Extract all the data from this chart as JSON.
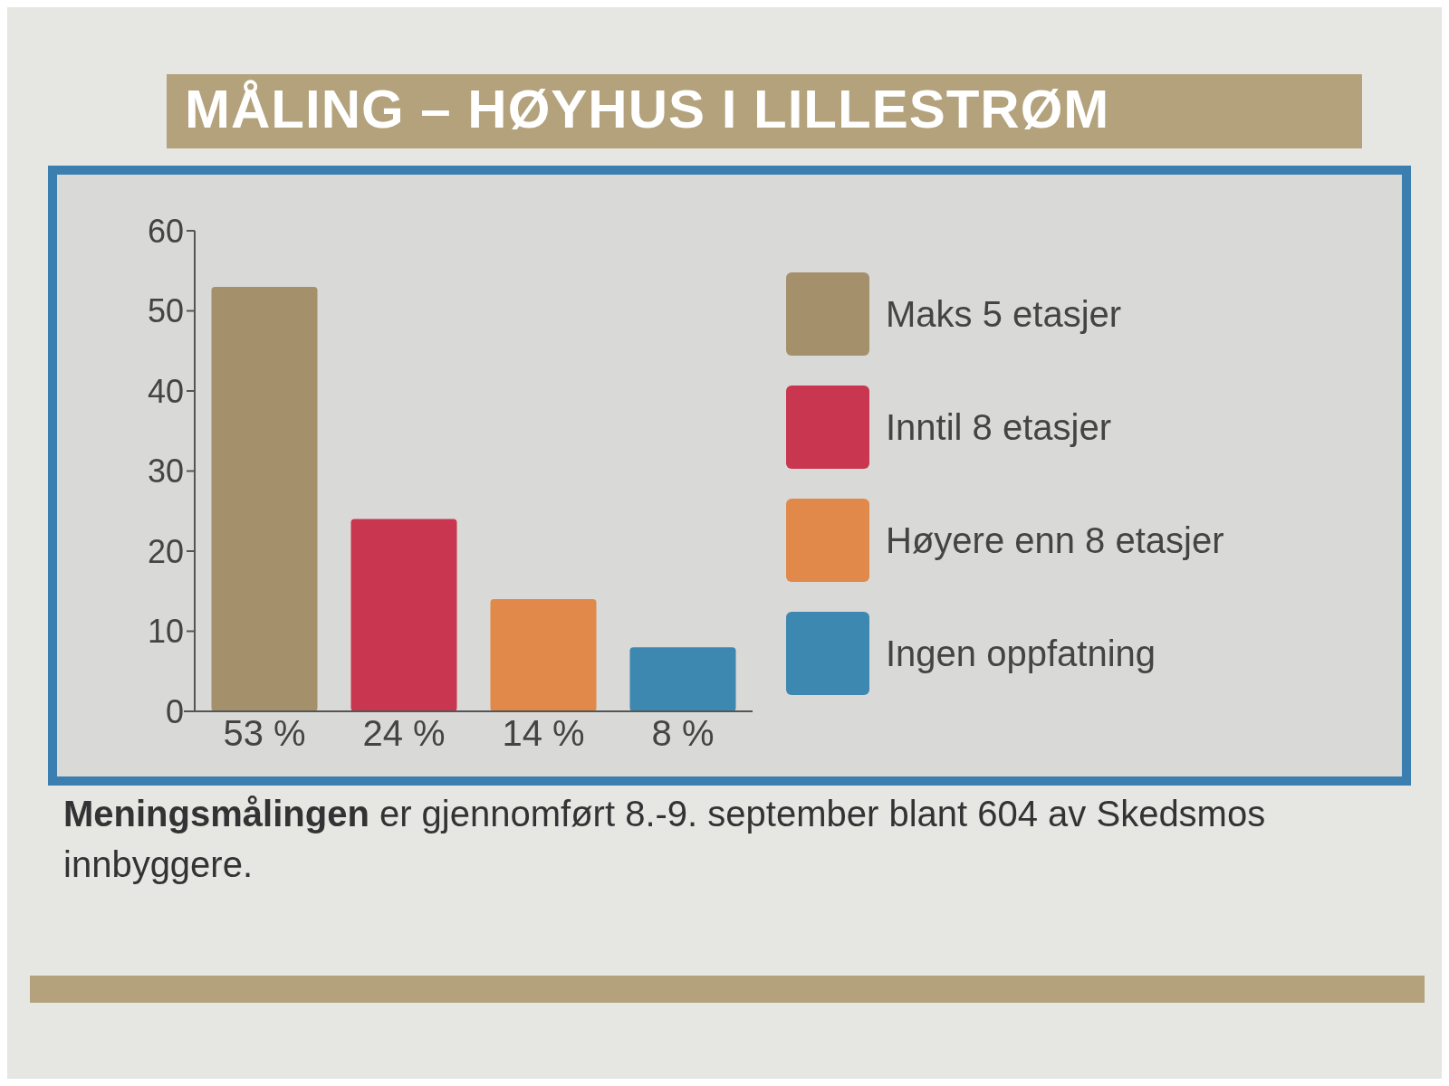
{
  "chart_data": {
    "type": "bar",
    "title": "MÅLING – HØYHUS I LILLESTRØM",
    "categories": [
      "53 %",
      "24 %",
      "14 %",
      "8 %"
    ],
    "stacked": true,
    "series": [
      {
        "name": "Maks 5 etasjer",
        "color": "#a4916c",
        "values": [
          53,
          null,
          null,
          null
        ]
      },
      {
        "name": "Inntil 8 etasjer",
        "color": "#c8374f",
        "values": [
          null,
          24,
          null,
          null
        ]
      },
      {
        "name": "Høyere enn 8 etasjer",
        "color": "#e0894a",
        "values": [
          null,
          null,
          14,
          null
        ]
      },
      {
        "name": "Ingen oppfatning",
        "color": "#3d88b0",
        "values": [
          null,
          null,
          null,
          8
        ]
      }
    ],
    "ylim": [
      0,
      60
    ],
    "yticks": [
      0,
      10,
      20,
      30,
      40,
      50,
      60
    ],
    "legend": "right",
    "annotations": [
      "Meningsmålingen er gjennomført 8.-9. september blant 604 av Skedsmos innbyggere."
    ]
  }
}
